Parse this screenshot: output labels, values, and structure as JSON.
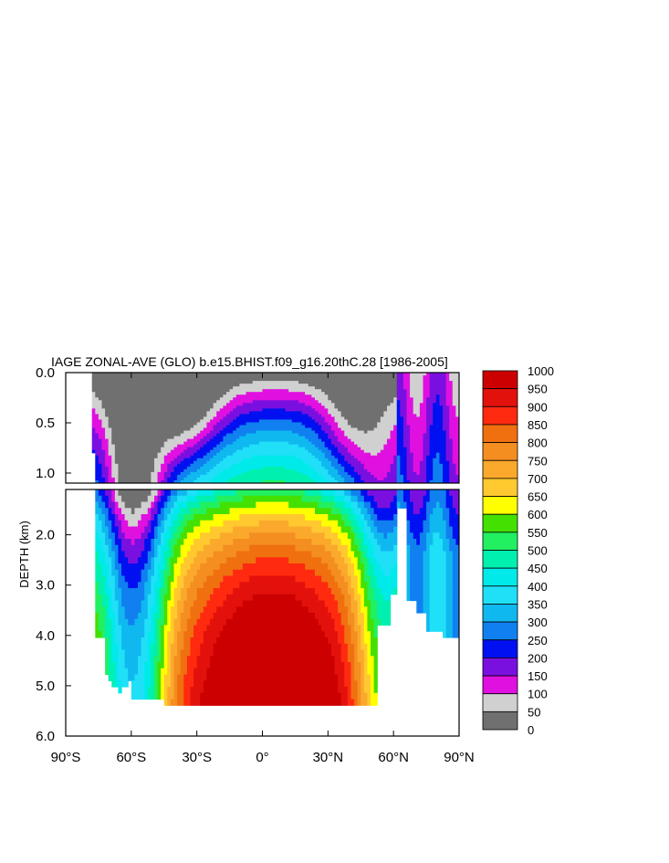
{
  "chart_data": {
    "type": "heatmap",
    "title": "IAGE ZONAL-AVE (GLO) b.e15.BHIST.f09_g16.20thC.28 [1986-2005]",
    "ylabel": "DEPTH (km)",
    "x_ticks": [
      "90°S",
      "60°S",
      "30°S",
      "0°",
      "30°N",
      "60°N",
      "90°N"
    ],
    "x_values": [
      -90,
      -60,
      -30,
      0,
      30,
      60,
      90
    ],
    "y_ticks_upper": [
      "0.0",
      "0.5",
      "1.0"
    ],
    "y_values_upper": [
      0,
      0.5,
      1.0
    ],
    "y_ticks_lower": [
      "2.0",
      "3.0",
      "4.0",
      "5.0",
      "6.0"
    ],
    "y_values_lower": [
      2,
      3,
      4,
      5,
      6
    ],
    "xlim": [
      -90,
      90
    ],
    "ylim_upper": [
      0,
      1.1
    ],
    "ylim_lower": [
      1.1,
      6.0
    ],
    "colorbar": {
      "labels": [
        "1000",
        "950",
        "900",
        "850",
        "800",
        "750",
        "700",
        "650",
        "600",
        "550",
        "500",
        "450",
        "400",
        "350",
        "300",
        "250",
        "200",
        "150",
        "100",
        "50",
        "0"
      ],
      "colors": [
        "#cc0000",
        "#e3110c",
        "#ff2a0f",
        "#f07010",
        "#f48e20",
        "#fba92c",
        "#ffc92f",
        "#ffff00",
        "#44e000",
        "#22f060",
        "#00f0b0",
        "#00eaea",
        "#20e0f8",
        "#10b8f0",
        "#1080f0",
        "#0010f0",
        "#7a10e0",
        "#e010e0",
        "#d0d0d0",
        "#707070"
      ]
    }
  }
}
